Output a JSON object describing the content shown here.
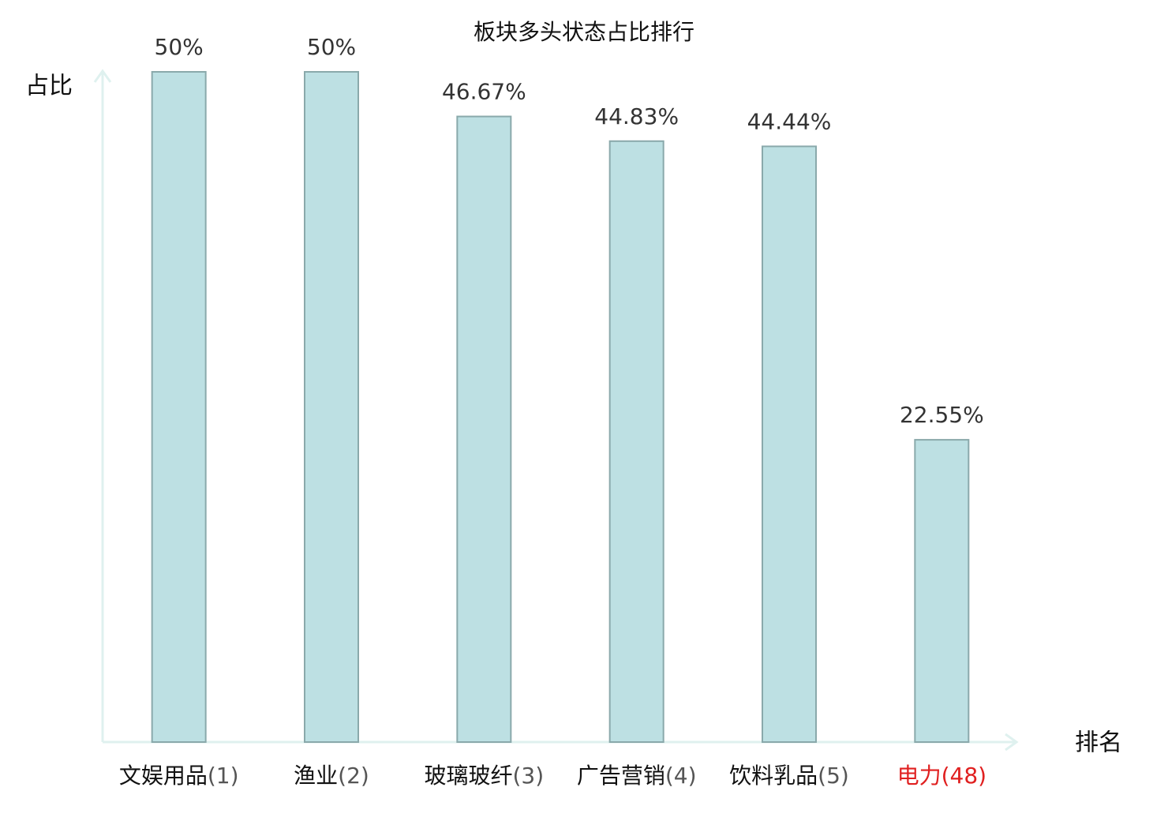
{
  "chart_data": {
    "type": "bar",
    "title": "板块多头状态占比排行",
    "y_label": "占比",
    "x_label": "排名",
    "categories": [
      "文娱用品",
      "渔业",
      "玻璃玻纤",
      "广告营销",
      "饮料乳品",
      "电力"
    ],
    "ranks": [
      "(1)",
      "(2)",
      "(3)",
      "(4)",
      "(5)",
      "(48)"
    ],
    "category_colors": [
      "#111111",
      "#111111",
      "#111111",
      "#111111",
      "#111111",
      "#e02020"
    ],
    "rank_colors": [
      "#555555",
      "#555555",
      "#555555",
      "#555555",
      "#555555",
      "#e02020"
    ],
    "values": [
      50,
      50,
      46.67,
      44.83,
      44.44,
      22.55
    ],
    "value_labels": [
      "50%",
      "50%",
      "46.67%",
      "44.83%",
      "44.44%",
      "22.55%"
    ],
    "color": "#bde0e3",
    "edge_color": "#8aa9ab",
    "axis_color": "#dff1ef",
    "ylim": [
      0,
      50
    ]
  }
}
